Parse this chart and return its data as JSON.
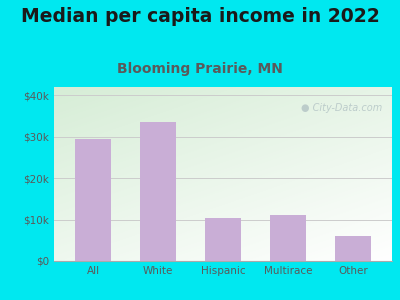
{
  "title": "Median per capita income in 2022",
  "subtitle": "Blooming Prairie, MN",
  "categories": [
    "All",
    "White",
    "Hispanic",
    "Multirace",
    "Other"
  ],
  "values": [
    29500,
    33500,
    10500,
    11000,
    6000
  ],
  "bar_color": "#c9aed6",
  "title_fontsize": 13.5,
  "subtitle_fontsize": 10,
  "title_color": "#1a1a1a",
  "subtitle_color": "#5a5a5a",
  "tick_color": "#5a5a5a",
  "background_outer": "#00e8f0",
  "background_inner_top_left": "#d6edd6",
  "background_inner_bottom_right": "#f8fef8",
  "ylim": [
    0,
    42000
  ],
  "yticks": [
    0,
    10000,
    20000,
    30000,
    40000
  ],
  "ytick_labels": [
    "$0",
    "$10k",
    "$20k",
    "$30k",
    "$40k"
  ],
  "watermark": "City-Data.com",
  "grid_color": "#cccccc"
}
